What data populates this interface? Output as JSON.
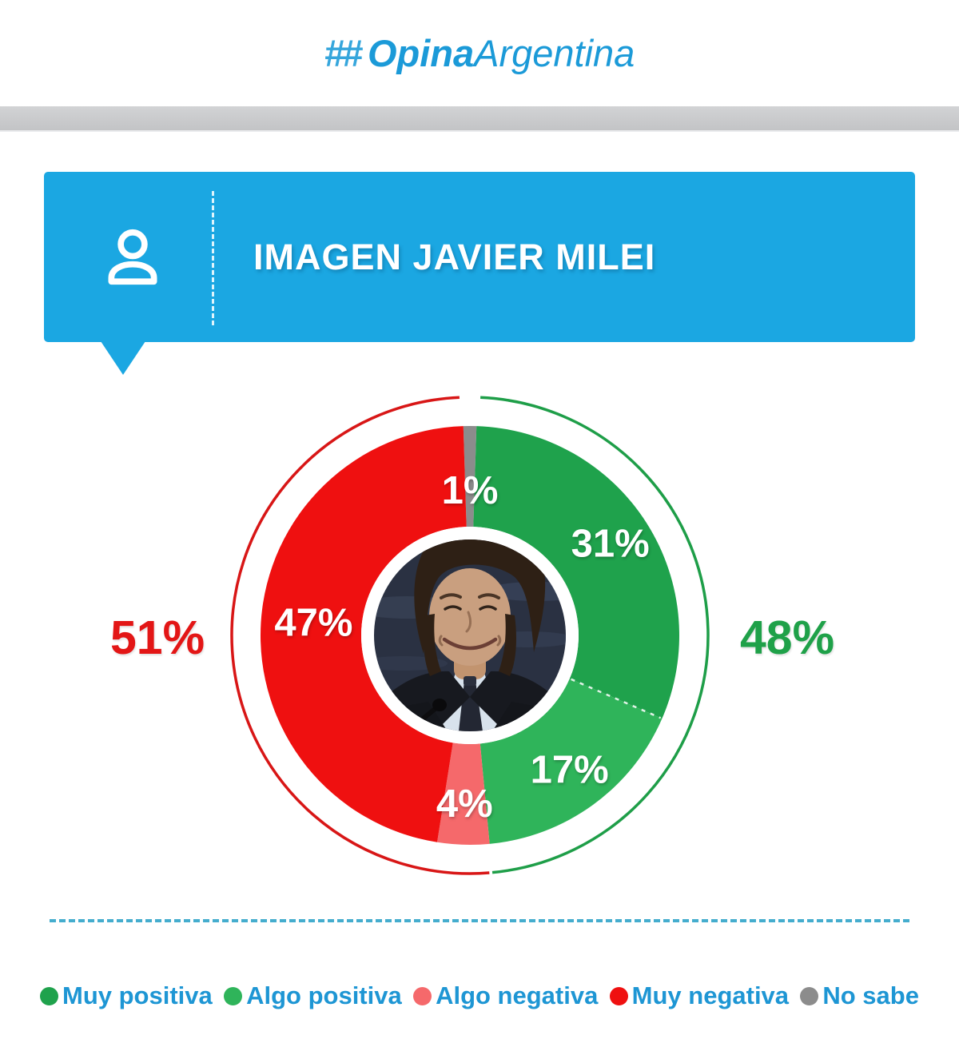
{
  "header": {
    "logo_hash": "##",
    "logo_part1": "Opina",
    "logo_part2": "Argentina"
  },
  "banner": {
    "title": "IMAGEN JAVIER MILEI",
    "icon": "person-icon"
  },
  "chart_data": {
    "type": "donut",
    "title": "IMAGEN JAVIER MILEI",
    "center_image": "javier-milei-photo",
    "legend_position": "bottom",
    "slices": [
      {
        "label": "No sabe",
        "value": 1,
        "display": "1%",
        "color": "#8c8c8c",
        "label_r": 178
      },
      {
        "label": "Muy positiva",
        "value": 31,
        "display": "31%",
        "color": "#1fa24c",
        "label_r": 208
      },
      {
        "label": "Algo positiva",
        "value": 17,
        "display": "17%",
        "color": "#2fb45a",
        "label_r": 212
      },
      {
        "label": "Algo negativa",
        "value": 4,
        "display": "4%",
        "color": "#f5696b",
        "label_r": 214
      },
      {
        "label": "Muy negativa",
        "value": 47,
        "display": "47%",
        "color": "#ef1010",
        "label_r": 196
      }
    ],
    "rotation_pct": -0.5,
    "totals": {
      "positive": {
        "display": "48%",
        "value": 48,
        "color": "#1fa149"
      },
      "negative": {
        "display": "51%",
        "value": 51,
        "color": "#e31616"
      }
    },
    "outer_arcs": [
      {
        "name": "positive-total-arc",
        "start_pct": 0.7,
        "end_pct": 48.5,
        "color": "#1e9e48"
      },
      {
        "name": "negative-total-arc",
        "start_pct": 48.7,
        "end_pct": 99.3,
        "color": "#d81616"
      }
    ],
    "layout": {
      "center": [
        588,
        795
      ],
      "outer_r": 262,
      "inner_r": 136,
      "ring_r": 298,
      "ring_width": 3.5,
      "photo_r": 120,
      "dashed_boundary_indexes": [
        2
      ]
    }
  },
  "legend": {
    "items": [
      "Muy positiva",
      "Algo positiva",
      "Algo negativa",
      "Muy negativa",
      "No sabe"
    ]
  },
  "colors": {
    "banner_blue": "#1ba7e2",
    "logo_blue": "#1b9ad8",
    "legend_text_blue": "#1e96d4",
    "divider_blue": "#45adce"
  }
}
